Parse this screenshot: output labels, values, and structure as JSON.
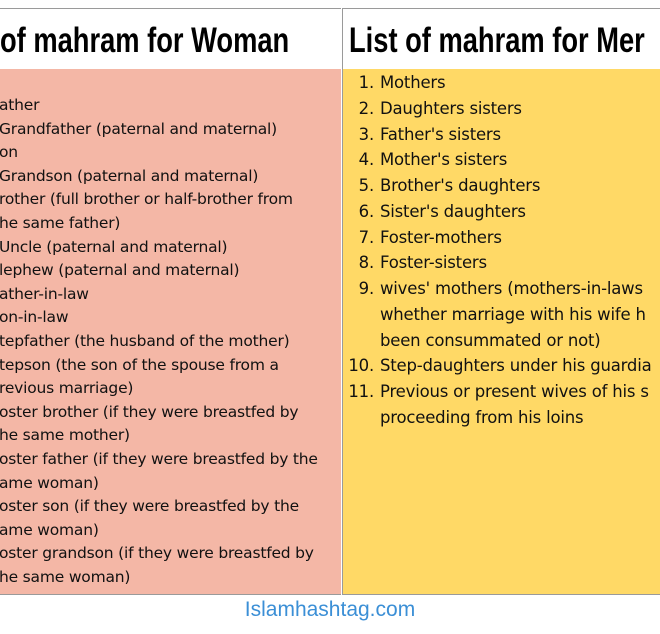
{
  "header": {
    "left_title": "of mahram for Woman",
    "right_title": "List of mahram for Mer"
  },
  "woman_list": [
    "ather",
    "Grandfather (paternal and maternal)",
    "on",
    "Grandson (paternal and maternal)",
    "rother (full brother or half-brother from",
    "he same father)",
    "Uncle (paternal and maternal)",
    "lephew (paternal and maternal)",
    "ather-in-law",
    "on-in-law",
    "tepfather (the husband of the mother)",
    "tepson (the son of the spouse from a",
    "revious marriage)",
    "oster brother (if they were breastfed by",
    "he same mother)",
    "oster father (if they were breastfed by the",
    "ame woman)",
    "oster son (if they were breastfed by the",
    "ame woman)",
    "oster grandson (if they were breastfed by",
    "he same woman)"
  ],
  "men_list": [
    {
      "num": "1.",
      "text": "Mothers"
    },
    {
      "num": "2.",
      "text": "Daughters sisters"
    },
    {
      "num": "3.",
      "text": "Father's sisters"
    },
    {
      "num": "4.",
      "text": "Mother's sisters"
    },
    {
      "num": "5.",
      "text": "Brother's daughters"
    },
    {
      "num": "6.",
      "text": "Sister's daughters"
    },
    {
      "num": "7.",
      "text": "Foster-mothers"
    },
    {
      "num": "8.",
      "text": "Foster-sisters"
    },
    {
      "num": "9.",
      "text": "wives' mothers (mothers-in-laws"
    },
    {
      "num": "",
      "text": "whether marriage with his wife h"
    },
    {
      "num": "",
      "text": "been consummated or not)"
    },
    {
      "num": "10.",
      "text": "Step-daughters under his guardia"
    },
    {
      "num": "11.",
      "text": "Previous or present wives of his s"
    },
    {
      "num": "",
      "text": "proceeding from his loins"
    }
  ],
  "footer": "Islamhashtag.com",
  "colors": {
    "woman_bg": "#F4B7A6",
    "men_bg": "#FFD966",
    "footer_text": "#3b8fd6"
  }
}
